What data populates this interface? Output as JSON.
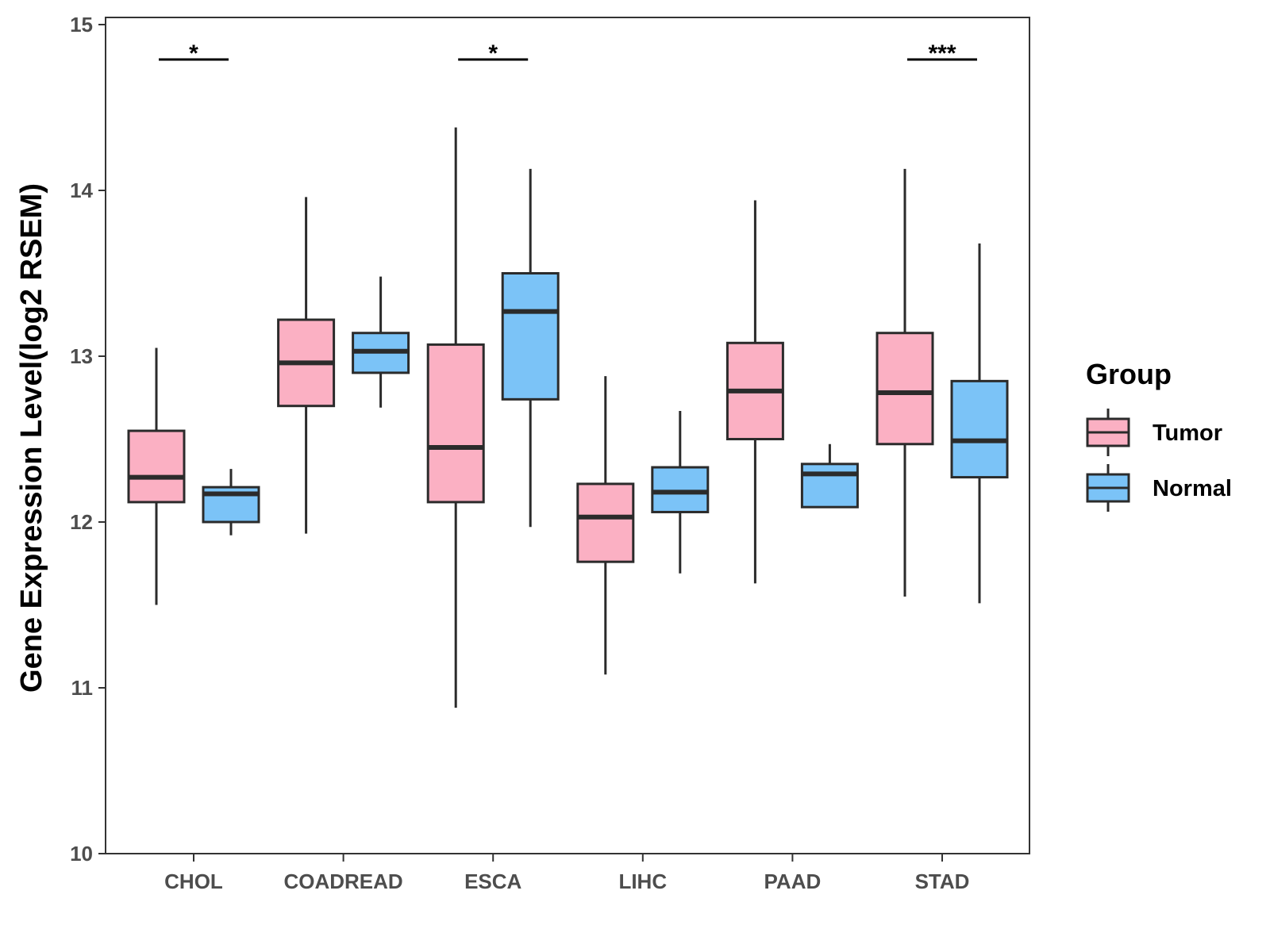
{
  "chart_data": {
    "type": "boxplot",
    "title": "",
    "xlabel": "",
    "ylabel": "Gene Expression Level(log2 RSEM)",
    "ylim": [
      10,
      15
    ],
    "yticks": [
      10,
      11,
      12,
      13,
      14,
      15
    ],
    "grid": false,
    "legend_position": "right",
    "categories": [
      "CHOL",
      "COADREAD",
      "ESCA",
      "LIHC",
      "PAAD",
      "STAD"
    ],
    "series": [
      {
        "name": "Tumor",
        "color": "#FBB0C3",
        "boxes": [
          {
            "min": 11.5,
            "q1": 12.12,
            "median": 12.27,
            "q3": 12.55,
            "max": 13.05
          },
          {
            "min": 11.93,
            "q1": 12.7,
            "median": 12.96,
            "q3": 13.22,
            "max": 13.96
          },
          {
            "min": 10.88,
            "q1": 12.12,
            "median": 12.45,
            "q3": 13.07,
            "max": 14.38
          },
          {
            "min": 11.08,
            "q1": 11.76,
            "median": 12.03,
            "q3": 12.23,
            "max": 12.88
          },
          {
            "min": 11.63,
            "q1": 12.5,
            "median": 12.79,
            "q3": 13.08,
            "max": 13.94
          },
          {
            "min": 11.55,
            "q1": 12.47,
            "median": 12.78,
            "q3": 13.14,
            "max": 14.13
          }
        ]
      },
      {
        "name": "Normal",
        "color": "#7BC3F7",
        "boxes": [
          {
            "min": 11.92,
            "q1": 12.0,
            "median": 12.17,
            "q3": 12.21,
            "max": 12.32
          },
          {
            "min": 12.69,
            "q1": 12.9,
            "median": 13.03,
            "q3": 13.14,
            "max": 13.48
          },
          {
            "min": 11.97,
            "q1": 12.74,
            "median": 13.27,
            "q3": 13.5,
            "max": 14.13
          },
          {
            "min": 11.69,
            "q1": 12.06,
            "median": 12.18,
            "q3": 12.33,
            "max": 12.67
          },
          {
            "min": 12.09,
            "q1": 12.09,
            "median": 12.29,
            "q3": 12.35,
            "max": 12.47
          },
          {
            "min": 11.51,
            "q1": 12.27,
            "median": 12.49,
            "q3": 12.85,
            "max": 13.68
          }
        ]
      }
    ],
    "significance": [
      {
        "category": "CHOL",
        "label": "*"
      },
      {
        "category": "ESCA",
        "label": "*"
      },
      {
        "category": "STAD",
        "label": "***"
      }
    ]
  },
  "legend": {
    "title": "Group",
    "items": [
      {
        "label": "Tumor",
        "color": "#FBB0C3"
      },
      {
        "label": "Normal",
        "color": "#7BC3F7"
      }
    ]
  }
}
